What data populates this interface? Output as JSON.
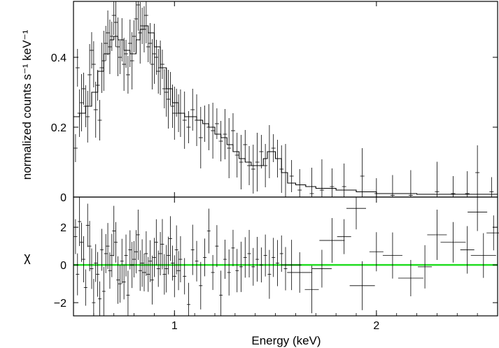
{
  "chart_data": [
    {
      "type": "line",
      "panel": "spectrum",
      "ylabel": "normalized counts s⁻¹ keV⁻¹",
      "xlim": [
        0.5,
        2.6
      ],
      "ylim": [
        0,
        0.56
      ],
      "yticks": [
        "0",
        "0.2",
        "0.4"
      ],
      "ytick_values": [
        0,
        0.2,
        0.4
      ],
      "grid": false,
      "series": [
        {
          "style": "crosses",
          "points": [
            [
              0.51,
              0.14
            ],
            [
              0.52,
              0.37
            ],
            [
              0.53,
              0.24
            ],
            [
              0.54,
              0.27
            ],
            [
              0.55,
              0.31
            ],
            [
              0.56,
              0.26
            ],
            [
              0.57,
              0.23
            ],
            [
              0.58,
              0.35
            ],
            [
              0.59,
              0.42
            ],
            [
              0.6,
              0.38
            ],
            [
              0.61,
              0.25
            ],
            [
              0.62,
              0.32
            ],
            [
              0.63,
              0.22
            ],
            [
              0.64,
              0.37
            ],
            [
              0.65,
              0.39
            ],
            [
              0.66,
              0.44
            ],
            [
              0.67,
              0.47
            ],
            [
              0.68,
              0.43
            ],
            [
              0.69,
              0.46
            ],
            [
              0.7,
              0.52
            ],
            [
              0.71,
              0.5
            ],
            [
              0.72,
              0.43
            ],
            [
              0.73,
              0.4
            ],
            [
              0.74,
              0.45
            ],
            [
              0.75,
              0.38
            ],
            [
              0.76,
              0.41
            ],
            [
              0.77,
              0.35
            ],
            [
              0.78,
              0.44
            ],
            [
              0.79,
              0.39
            ],
            [
              0.8,
              0.46
            ],
            [
              0.81,
              0.51
            ],
            [
              0.82,
              0.55
            ],
            [
              0.83,
              0.47
            ],
            [
              0.84,
              0.49
            ],
            [
              0.85,
              0.48
            ],
            [
              0.86,
              0.52
            ],
            [
              0.87,
              0.43
            ],
            [
              0.88,
              0.44
            ],
            [
              0.89,
              0.38
            ],
            [
              0.9,
              0.41
            ],
            [
              0.91,
              0.4
            ],
            [
              0.92,
              0.36
            ],
            [
              0.93,
              0.37
            ],
            [
              0.94,
              0.38
            ],
            [
              0.95,
              0.31
            ],
            [
              0.96,
              0.3
            ],
            [
              0.97,
              0.28
            ],
            [
              0.98,
              0.31
            ],
            [
              0.99,
              0.26
            ],
            [
              1.0,
              0.24
            ],
            [
              1.01,
              0.27
            ],
            [
              1.02,
              0.24
            ],
            [
              1.03,
              0.24
            ],
            [
              1.05,
              0.22
            ],
            [
              1.07,
              0.2
            ],
            [
              1.09,
              0.25
            ],
            [
              1.11,
              0.22
            ],
            [
              1.13,
              0.17
            ],
            [
              1.15,
              0.21
            ],
            [
              1.17,
              0.2
            ],
            [
              1.19,
              0.19
            ],
            [
              1.21,
              0.21
            ],
            [
              1.23,
              0.16
            ],
            [
              1.25,
              0.18
            ],
            [
              1.27,
              0.14
            ],
            [
              1.29,
              0.19
            ],
            [
              1.31,
              0.12
            ],
            [
              1.33,
              0.1
            ],
            [
              1.35,
              0.15
            ],
            [
              1.37,
              0.09
            ],
            [
              1.39,
              0.08
            ],
            [
              1.41,
              0.1
            ],
            [
              1.43,
              0.13
            ],
            [
              1.45,
              0.09
            ],
            [
              1.47,
              0.13
            ],
            [
              1.49,
              0.14
            ],
            [
              1.51,
              0.11
            ],
            [
              1.53,
              0.08
            ],
            [
              1.55,
              0.07
            ],
            [
              1.58,
              0.06
            ],
            [
              1.62,
              0.02
            ],
            [
              1.68,
              0.01
            ],
            [
              1.73,
              0.02
            ],
            [
              1.78,
              0.03
            ],
            [
              1.84,
              0.03
            ],
            [
              1.93,
              0.06
            ],
            [
              2.0,
              0.01
            ],
            [
              2.08,
              0.005
            ],
            [
              2.17,
              0.005
            ],
            [
              2.3,
              0.015
            ],
            [
              2.38,
              0.01
            ],
            [
              2.45,
              0.01
            ],
            [
              2.5,
              0.07
            ],
            [
              2.57,
              0.015
            ]
          ]
        },
        {
          "style": "step-model",
          "points": [
            [
              0.5,
              0.23
            ],
            [
              0.53,
              0.24
            ],
            [
              0.56,
              0.26
            ],
            [
              0.59,
              0.3
            ],
            [
              0.62,
              0.36
            ],
            [
              0.65,
              0.41
            ],
            [
              0.68,
              0.45
            ],
            [
              0.7,
              0.46
            ],
            [
              0.72,
              0.45
            ],
            [
              0.75,
              0.42
            ],
            [
              0.78,
              0.41
            ],
            [
              0.81,
              0.45
            ],
            [
              0.83,
              0.48
            ],
            [
              0.85,
              0.49
            ],
            [
              0.87,
              0.47
            ],
            [
              0.9,
              0.43
            ],
            [
              0.93,
              0.37
            ],
            [
              0.96,
              0.31
            ],
            [
              0.99,
              0.27
            ],
            [
              1.02,
              0.24
            ],
            [
              1.05,
              0.23
            ],
            [
              1.08,
              0.23
            ],
            [
              1.11,
              0.22
            ],
            [
              1.14,
              0.21
            ],
            [
              1.17,
              0.2
            ],
            [
              1.2,
              0.18
            ],
            [
              1.23,
              0.17
            ],
            [
              1.26,
              0.15
            ],
            [
              1.29,
              0.13
            ],
            [
              1.32,
              0.11
            ],
            [
              1.35,
              0.1
            ],
            [
              1.38,
              0.09
            ],
            [
              1.41,
              0.09
            ],
            [
              1.44,
              0.11
            ],
            [
              1.46,
              0.13
            ],
            [
              1.48,
              0.13
            ],
            [
              1.5,
              0.11
            ],
            [
              1.53,
              0.07
            ],
            [
              1.56,
              0.04
            ],
            [
              1.6,
              0.035
            ],
            [
              1.65,
              0.03
            ],
            [
              1.7,
              0.025
            ],
            [
              1.8,
              0.02
            ],
            [
              1.9,
              0.015
            ],
            [
              2.0,
              0.01
            ],
            [
              2.2,
              0.008
            ],
            [
              2.4,
              0.008
            ],
            [
              2.6,
              0.008
            ]
          ]
        }
      ]
    },
    {
      "type": "scatter",
      "panel": "residuals",
      "ylabel": "χ",
      "xlabel": "Energy (keV)",
      "xlim": [
        0.5,
        2.6
      ],
      "ylim": [
        -2.7,
        3.6
      ],
      "xticks": [
        "1",
        "2"
      ],
      "xtick_values": [
        1,
        2
      ],
      "yticks": [
        "−2",
        "0",
        "2"
      ],
      "ytick_values": [
        -2,
        0,
        2
      ],
      "zero_line_color": "#22dd22",
      "points": [
        [
          0.51,
          1.5
        ],
        [
          0.52,
          -0.5
        ],
        [
          0.53,
          2.3
        ],
        [
          0.54,
          1.2
        ],
        [
          0.55,
          0.3
        ],
        [
          0.56,
          -1.2
        ],
        [
          0.57,
          2.1
        ],
        [
          0.58,
          1.0
        ],
        [
          0.59,
          -0.2
        ],
        [
          0.6,
          -2.0
        ],
        [
          0.61,
          0.1
        ],
        [
          0.62,
          -0.5
        ],
        [
          0.63,
          -1.8
        ],
        [
          0.64,
          0.8
        ],
        [
          0.65,
          -1.4
        ],
        [
          0.66,
          0.6
        ],
        [
          0.67,
          1.0
        ],
        [
          0.68,
          -0.3
        ],
        [
          0.69,
          0.5
        ],
        [
          0.7,
          1.8
        ],
        [
          0.71,
          1.2
        ],
        [
          0.72,
          -0.8
        ],
        [
          0.73,
          -1.0
        ],
        [
          0.74,
          0.2
        ],
        [
          0.75,
          -0.9
        ],
        [
          0.76,
          0.5
        ],
        [
          0.77,
          -1.6
        ],
        [
          0.78,
          0.8
        ],
        [
          0.79,
          0.0
        ],
        [
          0.8,
          0.3
        ],
        [
          0.81,
          0.7
        ],
        [
          0.82,
          1.6
        ],
        [
          0.83,
          -0.3
        ],
        [
          0.84,
          0.1
        ],
        [
          0.85,
          -0.4
        ],
        [
          0.86,
          0.6
        ],
        [
          0.87,
          -0.5
        ],
        [
          0.88,
          0.2
        ],
        [
          0.89,
          -0.8
        ],
        [
          0.9,
          0.4
        ],
        [
          0.91,
          1.2
        ],
        [
          0.92,
          -0.2
        ],
        [
          0.93,
          0.6
        ],
        [
          0.94,
          1.1
        ],
        [
          0.95,
          -0.5
        ],
        [
          0.96,
          -0.2
        ],
        [
          0.97,
          0.5
        ],
        [
          0.98,
          1.4
        ],
        [
          0.99,
          0.1
        ],
        [
          1.0,
          -0.6
        ],
        [
          1.01,
          0.8
        ],
        [
          1.02,
          -0.3
        ],
        [
          1.03,
          0.3
        ],
        [
          1.05,
          -0.6
        ],
        [
          1.07,
          -2.1
        ],
        [
          1.09,
          0.8
        ],
        [
          1.11,
          0.2
        ],
        [
          1.13,
          -1.1
        ],
        [
          1.15,
          0.4
        ],
        [
          1.17,
          1.8
        ],
        [
          1.19,
          -0.4
        ],
        [
          1.21,
          1.0
        ],
        [
          1.23,
          -1.6
        ],
        [
          1.25,
          0.3
        ],
        [
          1.27,
          -0.4
        ],
        [
          1.29,
          0.9
        ],
        [
          1.31,
          -0.3
        ],
        [
          1.33,
          -0.1
        ],
        [
          1.35,
          0.4
        ],
        [
          1.37,
          0.6
        ],
        [
          1.39,
          -0.1
        ],
        [
          1.41,
          0.3
        ],
        [
          1.43,
          0.0
        ],
        [
          1.45,
          0.5
        ],
        [
          1.47,
          -0.5
        ],
        [
          1.49,
          0.4
        ],
        [
          1.51,
          0.1
        ],
        [
          1.53,
          0.6
        ],
        [
          1.55,
          -0.2
        ],
        [
          1.58,
          0.0
        ],
        [
          1.62,
          -0.4
        ],
        [
          1.68,
          -1.3
        ],
        [
          1.73,
          -0.2
        ],
        [
          1.78,
          1.3
        ],
        [
          1.84,
          1.5
        ],
        [
          1.9,
          3.0
        ],
        [
          1.93,
          -1.1
        ],
        [
          2.0,
          0.7
        ],
        [
          2.08,
          0.5
        ],
        [
          2.17,
          -0.7
        ],
        [
          2.24,
          -0.1
        ],
        [
          2.3,
          1.6
        ],
        [
          2.38,
          1.2
        ],
        [
          2.45,
          0.8
        ],
        [
          2.5,
          2.8
        ],
        [
          2.53,
          0.5
        ],
        [
          2.58,
          1.7
        ]
      ]
    }
  ]
}
